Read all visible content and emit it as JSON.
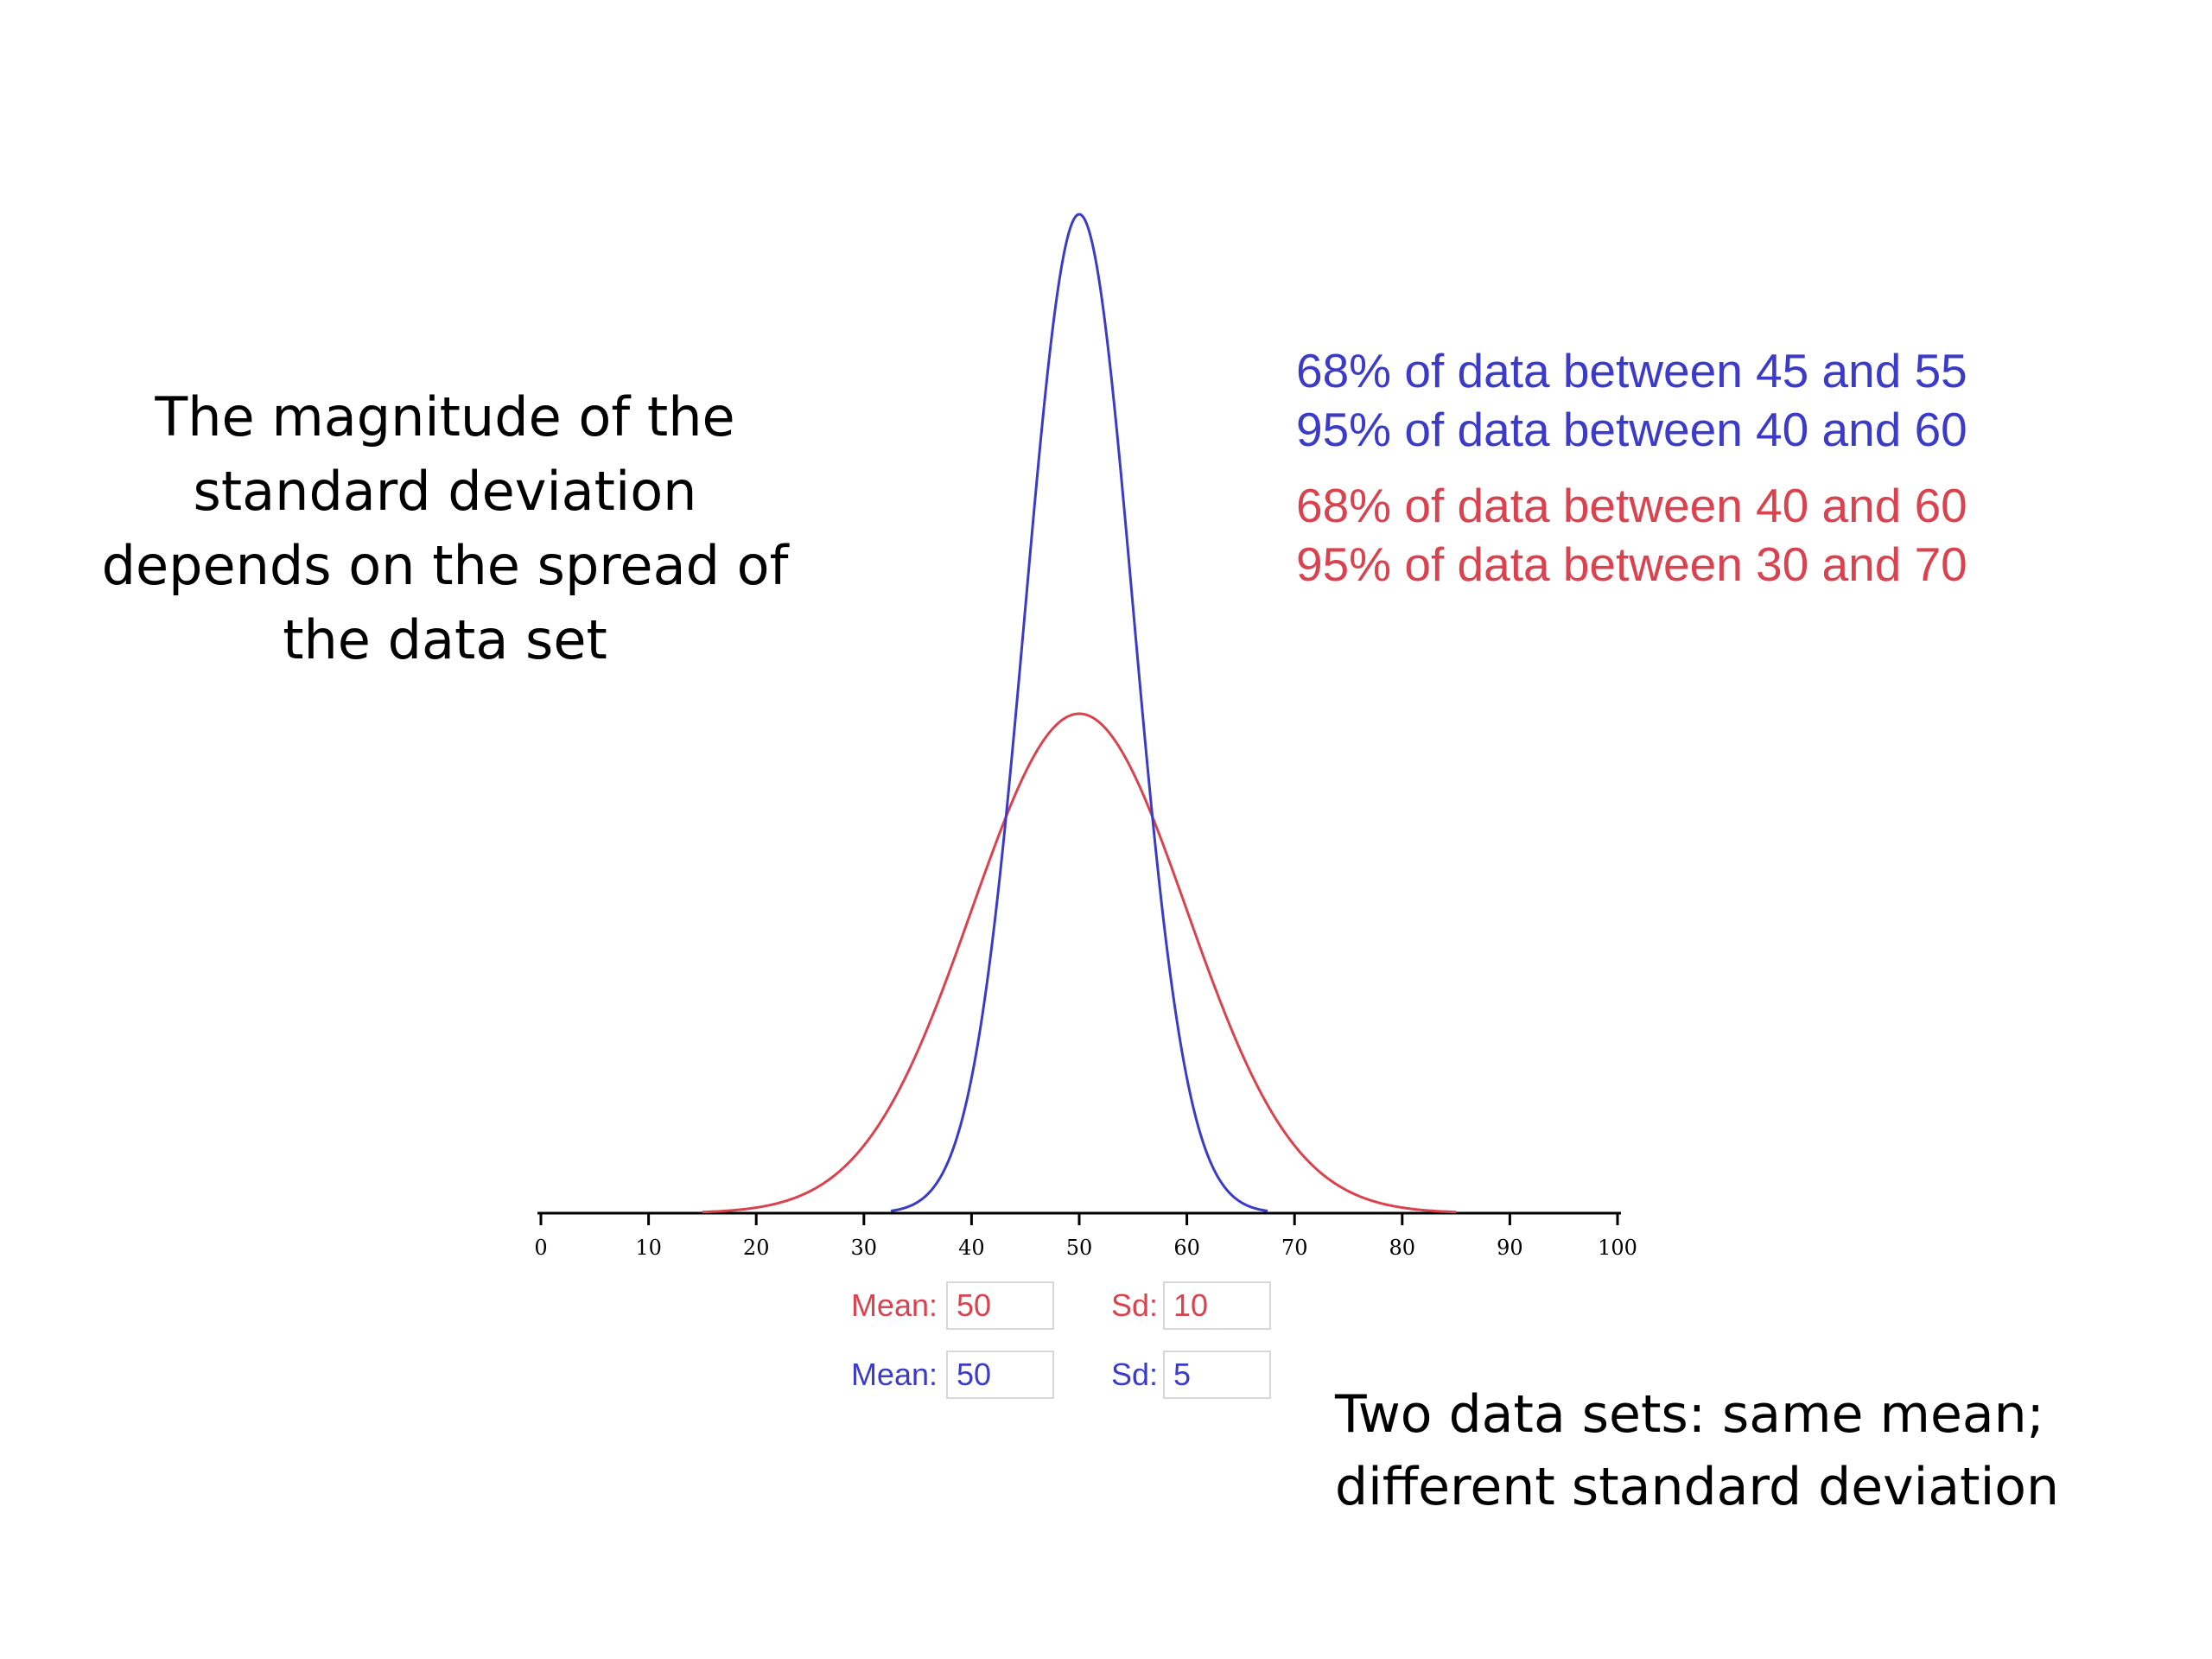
{
  "left_text": "The magnitude of the standard deviation depends on the spread of the data set",
  "stats": {
    "blue_68": "68% of data between 45 and 55",
    "blue_95": "95% of data between 40 and 60",
    "red_68": "68% of data between 40 and 60",
    "red_95": "95% of data between 30 and 70"
  },
  "bottom_text": {
    "line1": "Two data sets:  same mean;",
    "line2": "different standard deviation"
  },
  "controls": {
    "mean_label": "Mean:",
    "sd_label": "Sd:",
    "red": {
      "mean": "50",
      "sd": "10"
    },
    "blue": {
      "mean": "50",
      "sd": "5"
    }
  },
  "colors": {
    "red": "#d9434f",
    "blue": "#3b3bc8",
    "axis": "#000000"
  },
  "chart_data": {
    "type": "line",
    "xlim": [
      0,
      100
    ],
    "xticks": [
      0,
      10,
      20,
      30,
      40,
      50,
      60,
      70,
      80,
      90,
      100
    ],
    "series": [
      {
        "distribution": "normal",
        "mean": 50,
        "sd": 10,
        "color": "#d9434f"
      },
      {
        "distribution": "normal",
        "mean": 50,
        "sd": 5,
        "color": "#3b3bc8"
      }
    ]
  }
}
